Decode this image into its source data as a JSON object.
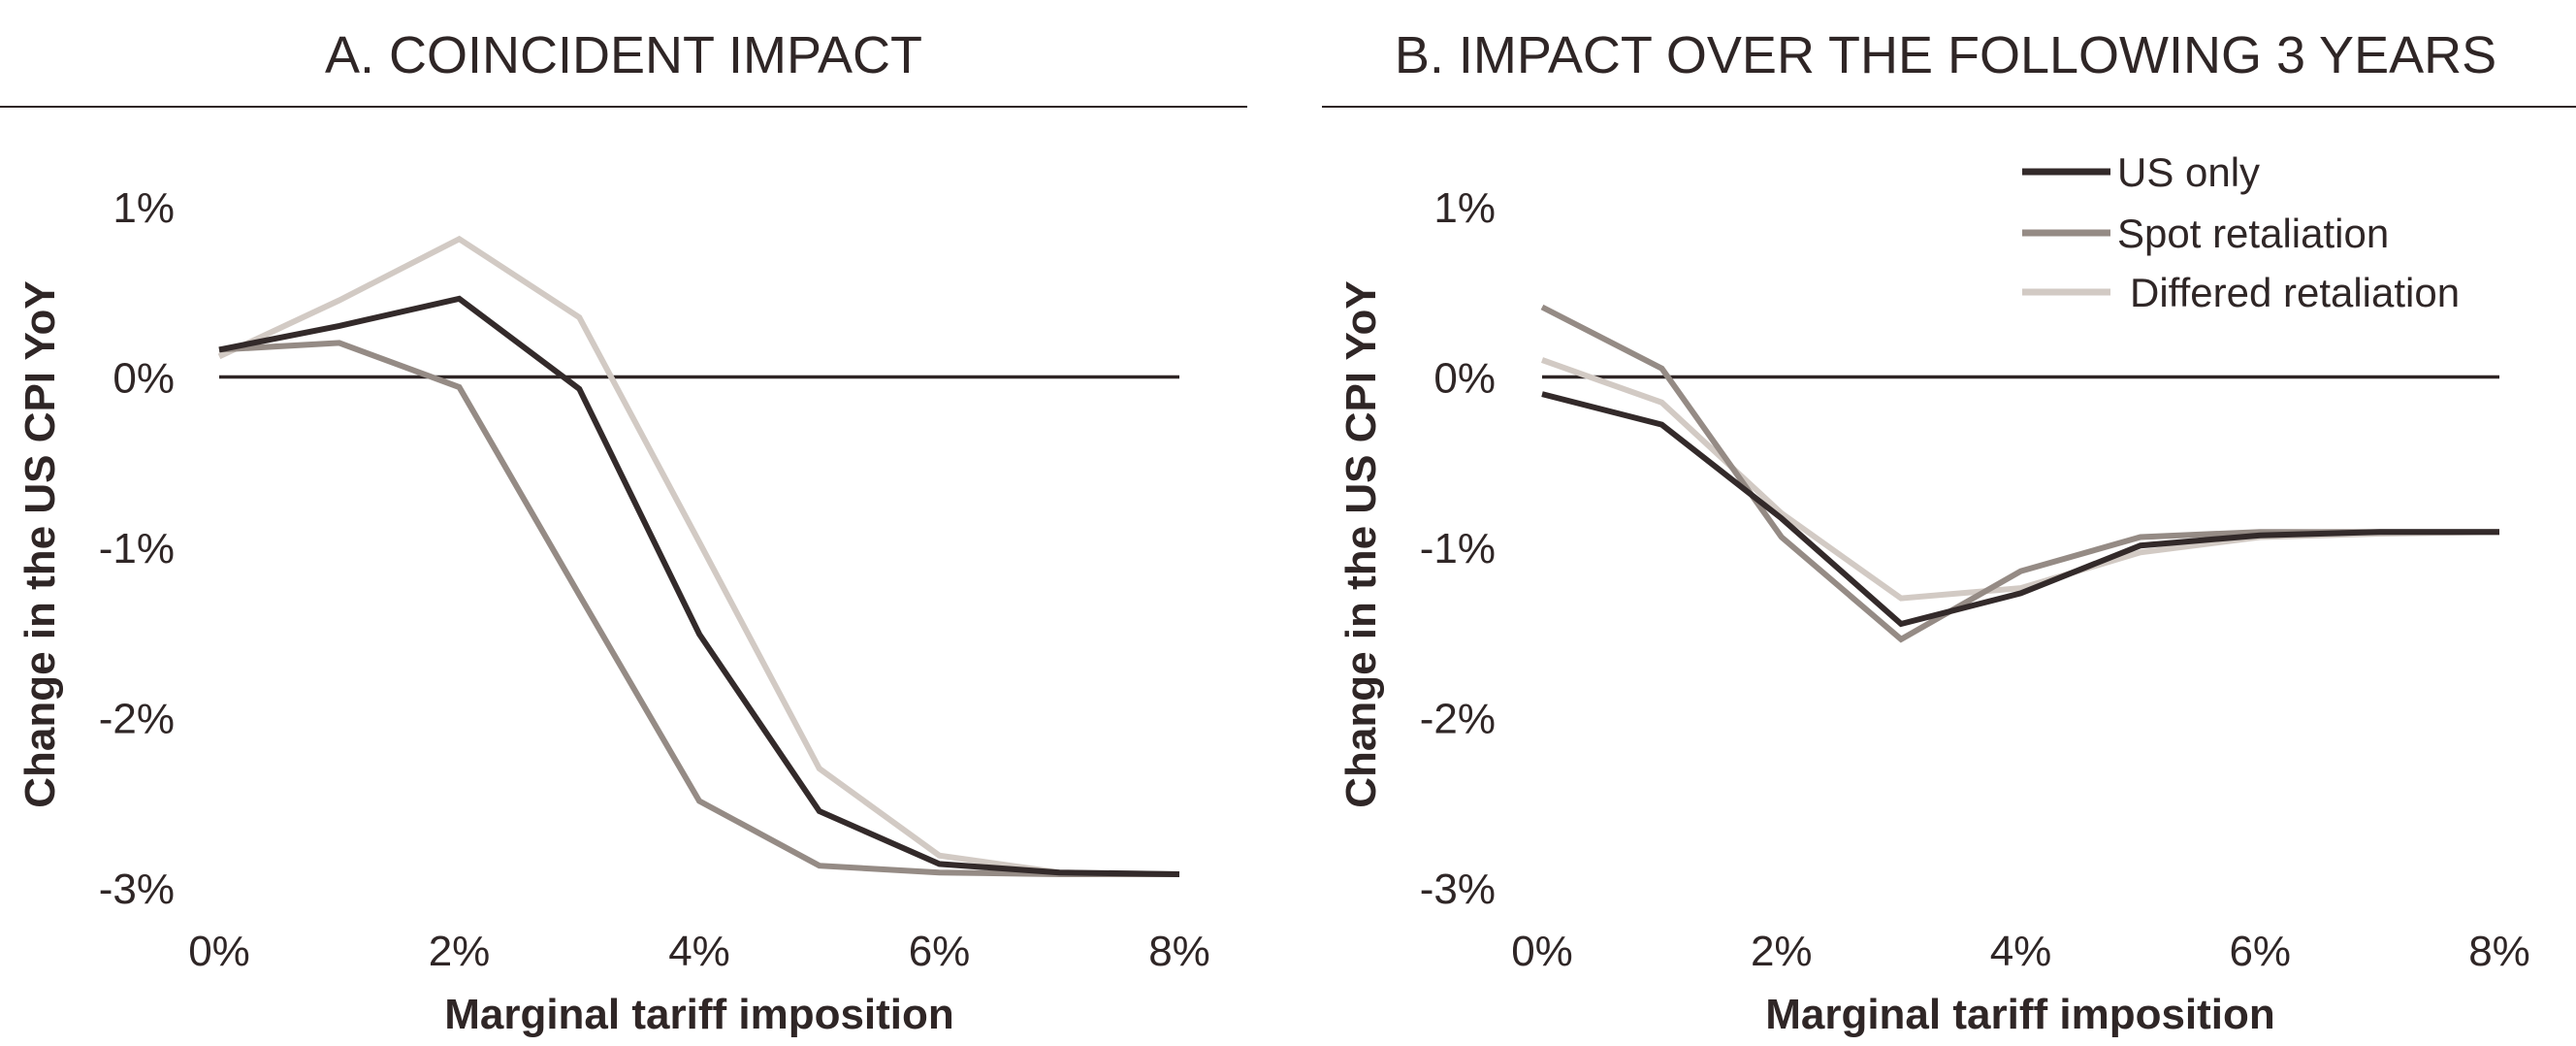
{
  "chart_data": [
    {
      "type": "line",
      "title": "A. COINCIDENT IMPACT",
      "xlabel": "Marginal tariff imposition",
      "ylabel": "Change in the US CPI YoY",
      "x": [
        0,
        1,
        2,
        3,
        4,
        5,
        6,
        7,
        8
      ],
      "x_tick_labels": [
        "0%",
        "2%",
        "4%",
        "6%",
        "8%"
      ],
      "x_ticks": [
        0,
        2,
        4,
        6,
        8
      ],
      "y_tick_labels": [
        "1%",
        "0%",
        "-1%",
        "-2%",
        "-3%"
      ],
      "y_ticks": [
        1,
        0,
        -1,
        -2,
        -3
      ],
      "xlim": [
        0,
        8
      ],
      "ylim": [
        -3,
        1
      ],
      "grid": false,
      "zero_line": true,
      "series": [
        {
          "name": "US only",
          "color": "#332a2a",
          "values": [
            0.16,
            0.3,
            0.46,
            -0.07,
            -1.51,
            -2.55,
            -2.86,
            -2.91,
            -2.92
          ]
        },
        {
          "name": "Spot retaliation",
          "color": "#958b85",
          "values": [
            0.16,
            0.2,
            -0.06,
            -1.28,
            -2.49,
            -2.87,
            -2.91,
            -2.92,
            -2.92
          ]
        },
        {
          "name": "Differed retaliation",
          "color": "#d2cac4",
          "values": [
            0.12,
            0.45,
            0.81,
            0.35,
            -0.97,
            -2.3,
            -2.81,
            -2.91,
            -2.92
          ]
        }
      ]
    },
    {
      "type": "line",
      "title": "B. IMPACT OVER THE FOLLOWING 3 YEARS",
      "xlabel": "Marginal tariff imposition",
      "ylabel": "Change in the US CPI YoY",
      "x": [
        0,
        1,
        2,
        3,
        4,
        5,
        6,
        7,
        8
      ],
      "x_tick_labels": [
        "0%",
        "2%",
        "4%",
        "6%",
        "8%"
      ],
      "x_ticks": [
        0,
        2,
        4,
        6,
        8
      ],
      "y_tick_labels": [
        "1%",
        "0%",
        "-1%",
        "-2%",
        "-3%"
      ],
      "y_ticks": [
        1,
        0,
        -1,
        -2,
        -3
      ],
      "xlim": [
        0,
        8
      ],
      "ylim": [
        -3,
        1
      ],
      "grid": false,
      "zero_line": true,
      "legend_position": "top-right",
      "series": [
        {
          "name": "US only",
          "color": "#332a2a",
          "values": [
            -0.1,
            -0.28,
            -0.83,
            -1.45,
            -1.27,
            -0.99,
            -0.93,
            -0.91,
            -0.91
          ]
        },
        {
          "name": "Spot retaliation",
          "color": "#958b85",
          "values": [
            0.41,
            0.05,
            -0.94,
            -1.54,
            -1.14,
            -0.94,
            -0.91,
            -0.91,
            -0.91
          ]
        },
        {
          "name": "Differed retaliation",
          "color": "#d2cac4",
          "values": [
            0.1,
            -0.15,
            -0.8,
            -1.3,
            -1.24,
            -1.03,
            -0.94,
            -0.92,
            -0.91
          ]
        }
      ]
    }
  ]
}
